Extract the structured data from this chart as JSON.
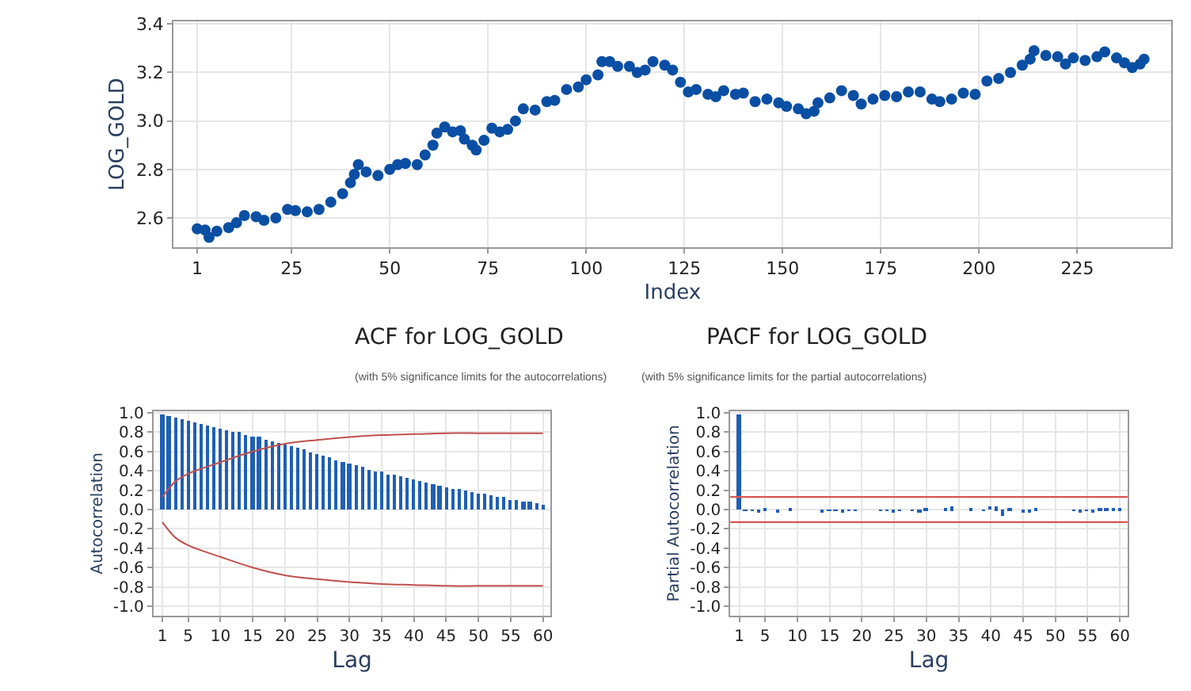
{
  "chart_data": [
    {
      "type": "scatter",
      "xlabel": "Index",
      "ylabel": "LOG_GOLD",
      "marker": "circle",
      "grid": true,
      "xlim": [
        -5,
        249
      ],
      "ylim": [
        2.48,
        3.41
      ],
      "xticks": [
        1,
        25,
        50,
        75,
        100,
        125,
        150,
        175,
        200,
        225
      ],
      "yticks": [
        2.6,
        2.8,
        {
          "value": 3.0,
          "label": "3.0"
        },
        3.2,
        3.4
      ],
      "series": [
        {
          "color": "#0a4fa3",
          "x": [
            1,
            3,
            4,
            6,
            9,
            11,
            13,
            16,
            18,
            21,
            24,
            26,
            29,
            32,
            35,
            38,
            40,
            41,
            42,
            44,
            47,
            50,
            52,
            54,
            57,
            59,
            61,
            62,
            64,
            66,
            68,
            69,
            71,
            72,
            74,
            76,
            78,
            80,
            82,
            84,
            87,
            90,
            92,
            95,
            98,
            100,
            103,
            104,
            106,
            108,
            111,
            113,
            115,
            117,
            120,
            122,
            124,
            126,
            128,
            131,
            133,
            135,
            138,
            140,
            143,
            146,
            149,
            151,
            154,
            156,
            158,
            159,
            162,
            165,
            168,
            170,
            173,
            176,
            179,
            182,
            185,
            188,
            190,
            193,
            196,
            199,
            202,
            205,
            208,
            211,
            213,
            214,
            217,
            220,
            222,
            224,
            227,
            230,
            232,
            235,
            237,
            239,
            241,
            242
          ],
          "values": [
            2.555,
            2.55,
            2.52,
            2.545,
            2.56,
            2.58,
            2.61,
            2.605,
            2.59,
            2.6,
            2.635,
            2.63,
            2.625,
            2.635,
            2.665,
            2.7,
            2.745,
            2.78,
            2.82,
            2.79,
            2.775,
            2.8,
            2.82,
            2.825,
            2.82,
            2.86,
            2.9,
            2.95,
            2.975,
            2.955,
            2.96,
            2.925,
            2.9,
            2.88,
            2.92,
            2.97,
            2.955,
            2.965,
            3.0,
            3.05,
            3.045,
            3.08,
            3.085,
            3.13,
            3.14,
            3.17,
            3.19,
            3.245,
            3.245,
            3.225,
            3.225,
            3.2,
            3.21,
            3.245,
            3.23,
            3.21,
            3.16,
            3.12,
            3.13,
            3.11,
            3.1,
            3.125,
            3.11,
            3.115,
            3.08,
            3.09,
            3.075,
            3.06,
            3.05,
            3.03,
            3.04,
            3.075,
            3.095,
            3.125,
            3.105,
            3.07,
            3.09,
            3.105,
            3.1,
            3.12,
            3.12,
            3.09,
            3.08,
            3.09,
            3.115,
            3.11,
            3.165,
            3.175,
            3.2,
            3.23,
            3.255,
            3.29,
            3.27,
            3.265,
            3.235,
            3.26,
            3.25,
            3.265,
            3.285,
            3.26,
            3.24,
            3.22,
            3.235,
            3.255
          ]
        }
      ]
    },
    {
      "type": "bar",
      "title": "ACF for LOG_GOLD",
      "subtitle": "(with 5% significance limits for the autocorrelations)",
      "xlabel": "Lag",
      "ylabel": "Autocorrelation",
      "grid": true,
      "xlim": [
        -0.4,
        61.2
      ],
      "ylim": [
        -1.1,
        1.02
      ],
      "xticks": [
        1,
        5,
        10,
        15,
        20,
        25,
        30,
        35,
        40,
        45,
        50,
        55,
        60
      ],
      "yticks": [
        {
          "value": 1.0,
          "label": "1.0"
        },
        0.8,
        0.6,
        0.4,
        0.2,
        {
          "value": 0.0,
          "label": "0.0"
        },
        -0.2,
        -0.4,
        -0.6,
        -0.8,
        {
          "value": -1.0,
          "label": "-1.0"
        }
      ],
      "x": [
        1,
        2,
        3,
        4,
        5,
        6,
        7,
        8,
        9,
        10,
        11,
        12,
        13,
        14,
        15,
        16,
        17,
        18,
        19,
        20,
        21,
        22,
        23,
        24,
        25,
        26,
        27,
        28,
        29,
        30,
        31,
        32,
        33,
        34,
        35,
        36,
        37,
        38,
        39,
        40,
        41,
        42,
        43,
        44,
        45,
        46,
        47,
        48,
        49,
        50,
        51,
        52,
        53,
        54,
        55,
        56,
        57,
        58,
        59,
        60
      ],
      "series": [
        {
          "type": "bar",
          "color": "#1f5fb4",
          "values": [
            0.98,
            0.97,
            0.95,
            0.94,
            0.92,
            0.91,
            0.89,
            0.88,
            0.86,
            0.84,
            0.83,
            0.81,
            0.8,
            0.78,
            0.76,
            0.75,
            0.73,
            0.71,
            0.69,
            0.67,
            0.66,
            0.64,
            0.62,
            0.6,
            0.58,
            0.56,
            0.54,
            0.52,
            0.5,
            0.48,
            0.46,
            0.44,
            0.42,
            0.4,
            0.39,
            0.37,
            0.36,
            0.34,
            0.33,
            0.31,
            0.3,
            0.28,
            0.27,
            0.25,
            0.24,
            0.22,
            0.21,
            0.2,
            0.18,
            0.17,
            0.16,
            0.15,
            0.14,
            0.13,
            0.11,
            0.1,
            0.09,
            0.08,
            0.07,
            0.06
          ]
        },
        {
          "type": "line",
          "color": "#c0504d",
          "x": [
            1,
            3,
            5,
            10,
            15,
            20,
            25,
            30,
            35,
            40,
            45,
            50,
            55,
            60
          ],
          "values": [
            0.13,
            0.29,
            0.37,
            0.49,
            0.6,
            0.68,
            0.72,
            0.75,
            0.77,
            0.78,
            0.79,
            0.79,
            0.79,
            0.79
          ]
        },
        {
          "type": "line",
          "color": "#c0504d",
          "x": [
            1,
            3,
            5,
            10,
            15,
            20,
            25,
            30,
            35,
            40,
            45,
            50,
            55,
            60
          ],
          "values": [
            -0.13,
            -0.29,
            -0.37,
            -0.49,
            -0.6,
            -0.68,
            -0.72,
            -0.75,
            -0.77,
            -0.78,
            -0.79,
            -0.79,
            -0.79,
            -0.79
          ]
        }
      ]
    },
    {
      "type": "bar",
      "title": "PACF for LOG_GOLD",
      "subtitle": "(with 5% significance limits for the partial autocorrelations)",
      "xlabel": "Lag",
      "ylabel": "Partial Autocorrelation",
      "grid": true,
      "xlim": [
        -0.4,
        61.2
      ],
      "ylim": [
        -1.1,
        1.02
      ],
      "xticks": [
        1,
        5,
        10,
        15,
        20,
        25,
        30,
        35,
        40,
        45,
        50,
        55,
        60
      ],
      "yticks": [
        {
          "value": 1.0,
          "label": "1.0"
        },
        0.8,
        0.6,
        0.4,
        0.2,
        {
          "value": 0.0,
          "label": "0.0"
        },
        -0.2,
        -0.4,
        -0.6,
        -0.8,
        {
          "value": -1.0,
          "label": "-1.0"
        }
      ],
      "x": [
        1,
        2,
        3,
        4,
        5,
        6,
        7,
        8,
        9,
        10,
        11,
        12,
        13,
        14,
        15,
        16,
        17,
        18,
        19,
        20,
        21,
        22,
        23,
        24,
        25,
        26,
        27,
        28,
        29,
        30,
        31,
        32,
        33,
        34,
        35,
        36,
        37,
        38,
        39,
        40,
        41,
        42,
        43,
        44,
        45,
        46,
        47,
        48,
        49,
        50,
        51,
        52,
        53,
        54,
        55,
        56,
        57,
        58,
        59,
        60
      ],
      "series": [
        {
          "type": "bar",
          "color": "#1f5fb4",
          "values": [
            0.98,
            -0.01,
            -0.01,
            -0.02,
            0.01,
            0,
            -0.03,
            0,
            0.02,
            0,
            0,
            0,
            0,
            -0.02,
            -0.01,
            -0.01,
            -0.02,
            -0.01,
            -0.01,
            0,
            0,
            0,
            -0.01,
            -0.01,
            -0.02,
            -0.01,
            0,
            -0.01,
            -0.02,
            0.01,
            0,
            0,
            0.01,
            0.03,
            0,
            0,
            0.02,
            0,
            -0.01,
            0.04,
            0.03,
            -0.06,
            0.01,
            0,
            -0.02,
            -0.03,
            0.01,
            0,
            0,
            0,
            0,
            0,
            -0.01,
            -0.02,
            -0.01,
            -0.02,
            0.01,
            0.02,
            0.02,
            0.01
          ]
        }
      ],
      "ref_lines": [
        {
          "axis": "y",
          "value": 0.13,
          "color": "#d9534f"
        },
        {
          "axis": "y",
          "value": -0.13,
          "color": "#d9534f"
        }
      ]
    }
  ]
}
